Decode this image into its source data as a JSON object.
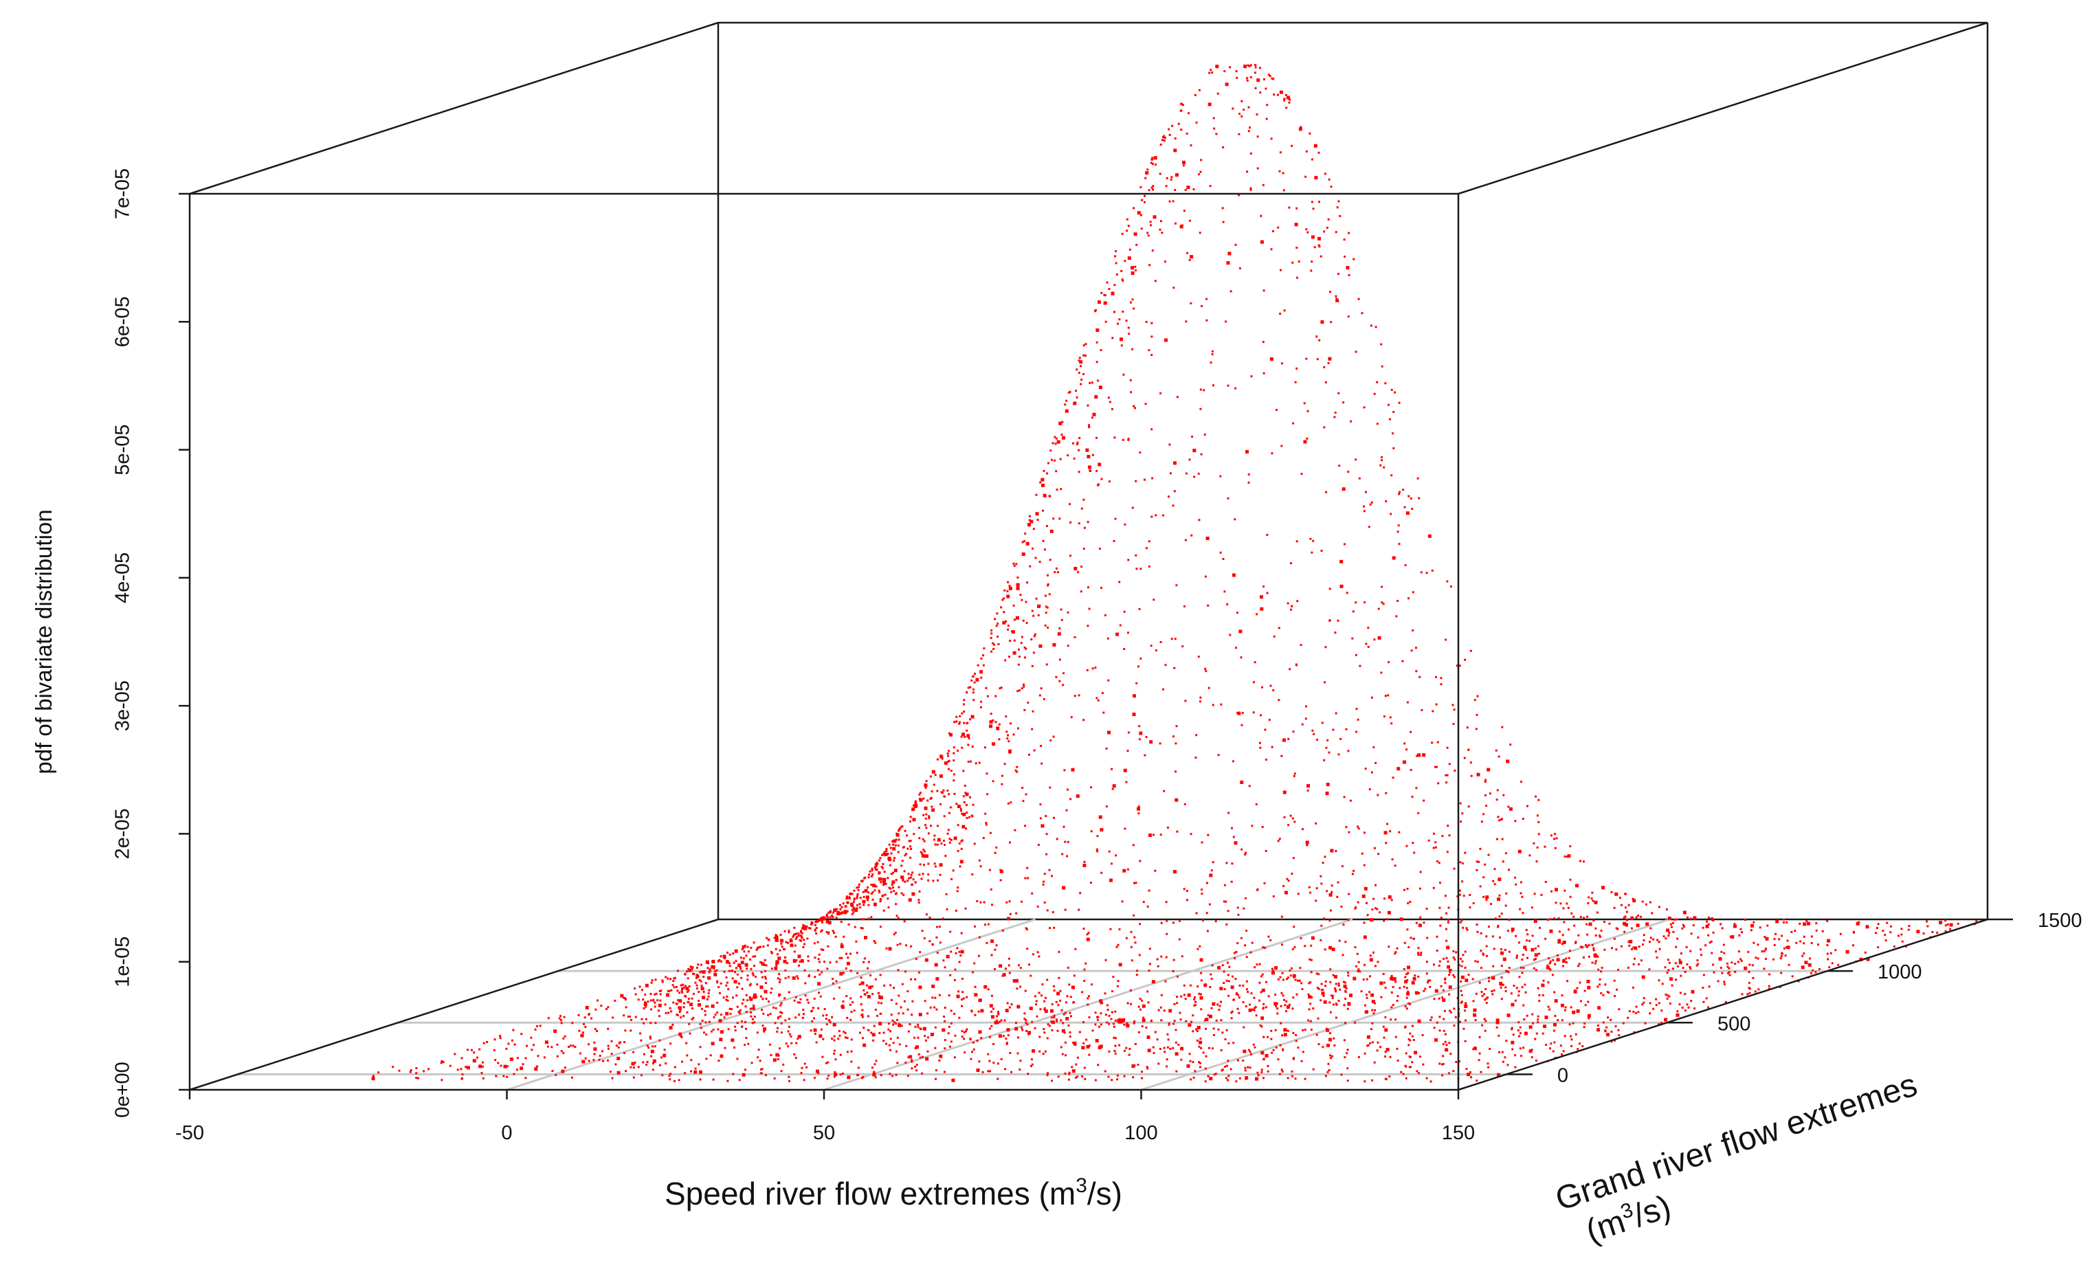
{
  "chart_data": {
    "type": "scatter",
    "projection": "3d-perspective-box",
    "x_axis": {
      "title_prefix": "Speed river flow extremes (m",
      "title_sup": "3",
      "title_suffix": "/s)",
      "range": [
        -50,
        150
      ],
      "ticks": [
        -50,
        0,
        50,
        100,
        150
      ],
      "tick_labels": [
        "-50",
        "0",
        "50",
        "100",
        "150"
      ]
    },
    "depth_axis": {
      "title_line1": "Grand river flow extremes",
      "title_line2_prefix": "(m",
      "title_line2_sup": "3",
      "title_line2_suffix": "/s)",
      "range": [
        -150,
        1500
      ],
      "ticks": [
        0,
        500,
        1000,
        1500
      ],
      "tick_labels": [
        "0",
        "500",
        "1000",
        "1500"
      ]
    },
    "z_axis": {
      "title": "pdf of bivariate distribution",
      "range": [
        0,
        7e-05
      ],
      "ticks": [
        0,
        1e-05,
        2e-05,
        3e-05,
        4e-05,
        5e-05,
        6e-05,
        7e-05
      ],
      "tick_labels": [
        "0e+00",
        "1e-05",
        "2e-05",
        "3e-05",
        "4e-05",
        "5e-05",
        "6e-05",
        "7e-05"
      ]
    },
    "surface": {
      "family": "bivariate normal",
      "peak_pdf": 6.8e-05,
      "peak_at": {
        "speed": 36,
        "grand": 1400
      },
      "spread": {
        "speed": 22,
        "grand": 320
      },
      "sample_points": 7000
    },
    "point_color": "#ff0000",
    "box_color": "#1a1a1a",
    "grid_color": "#c8c8c8",
    "grid": true,
    "legend": "none"
  }
}
